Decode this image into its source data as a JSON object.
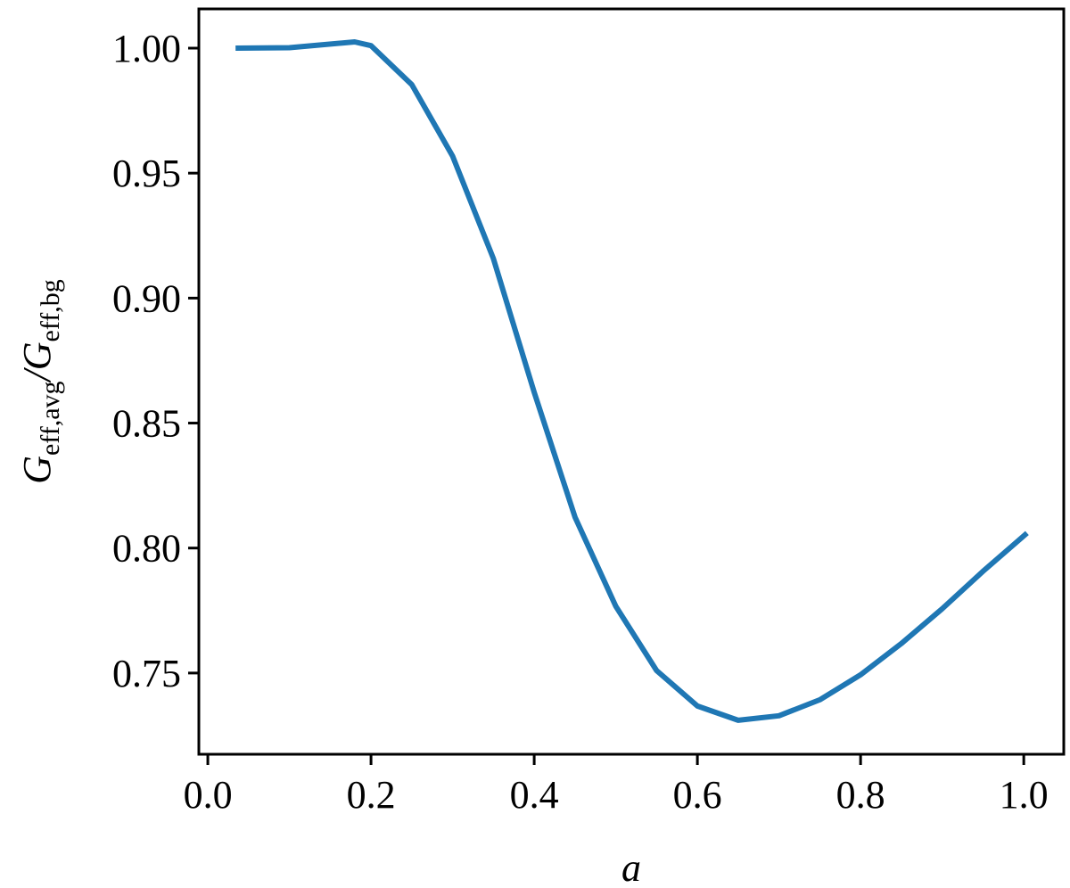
{
  "chart_data": {
    "type": "line",
    "x_label": "a",
    "y_label": [
      "G",
      "eff,avg",
      "/G",
      "eff,bg"
    ],
    "x": [
      0.034,
      0.1,
      0.18,
      0.2,
      0.25,
      0.3,
      0.35,
      0.4,
      0.45,
      0.5,
      0.55,
      0.6,
      0.65,
      0.7,
      0.75,
      0.8,
      0.85,
      0.9,
      0.95,
      1.004
    ],
    "series": [
      {
        "color": "#1f77b4",
        "values": [
          1.0,
          1.0002,
          1.0025,
          1.001,
          0.9854,
          0.9568,
          0.9158,
          0.8623,
          0.8124,
          0.7767,
          0.751,
          0.7368,
          0.7311,
          0.7329,
          0.7393,
          0.7493,
          0.7618,
          0.7757,
          0.7907,
          0.806
        ]
      }
    ],
    "xlim": [
      -0.011,
      1.049
    ],
    "ylim": [
      0.7175,
      1.0157
    ],
    "xticks": [
      {
        "value": 0,
        "label": "0.0"
      },
      0.2,
      0.4,
      0.6,
      0.8,
      {
        "value": 1,
        "label": "1.0"
      }
    ],
    "yticks": [
      {
        "value": 0.75,
        "label": "0.75"
      },
      {
        "value": 0.8,
        "label": "0.80"
      },
      0.85,
      {
        "value": 0.9,
        "label": "0.90"
      },
      0.95,
      {
        "value": 1,
        "label": "1.00"
      }
    ],
    "grid": false
  }
}
